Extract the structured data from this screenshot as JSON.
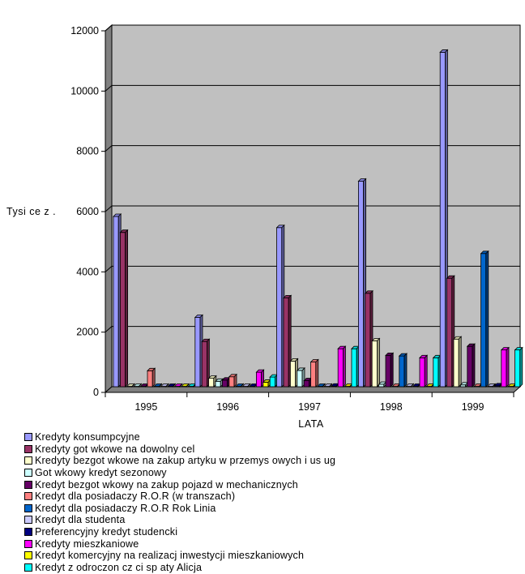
{
  "chart_data": {
    "type": "bar",
    "ylabel": "Tysi ce z .",
    "xlabel": "LATA",
    "ylim": [
      0,
      12000
    ],
    "yticks": [
      0,
      2000,
      4000,
      6000,
      8000,
      10000,
      12000
    ],
    "grid": true,
    "legend_position": "bottom",
    "categories": [
      "1995",
      "1996",
      "1997",
      "1998",
      "1999"
    ],
    "series": [
      {
        "name": "Kredyty konsumpcyjne",
        "color": "#9999ff",
        "values": [
          5650,
          2300,
          5280,
          6820,
          11100
        ]
      },
      {
        "name": "Kredyty got  wkowe na dowolny cel",
        "color": "#993366",
        "values": [
          5120,
          1500,
          2950,
          3100,
          3600
        ]
      },
      {
        "name": "Kredyty bezgot  wkowe na zakup artyku   w przemys owych i us ug",
        "color": "#ffffcc",
        "values": [
          0,
          280,
          850,
          1520,
          1580
        ]
      },
      {
        "name": "Got  wkowy kredyt sezonowy",
        "color": "#ccffff",
        "values": [
          0,
          180,
          540,
          80,
          60
        ]
      },
      {
        "name": "Kredyt bezgot  wkowy na zakup pojazd  w mechanicznych",
        "color": "#660066",
        "values": [
          0,
          220,
          200,
          1040,
          1340
        ]
      },
      {
        "name": "Kredyt dla posiadaczy R.O.R (w transzach)",
        "color": "#ff8080",
        "values": [
          530,
          330,
          820,
          0,
          0
        ]
      },
      {
        "name": "Kredyt dla posiadaczy R.O.R  Rok Linia",
        "color": "#0066cc",
        "values": [
          0,
          0,
          0,
          1020,
          4420
        ]
      },
      {
        "name": "Kredyt dla studenta",
        "color": "#ccccff",
        "values": [
          0,
          0,
          0,
          0,
          0
        ]
      },
      {
        "name": "Preferencyjny kredyt studencki",
        "color": "#000080",
        "values": [
          0,
          0,
          20,
          0,
          30
        ]
      },
      {
        "name": "Kredyty mieszkaniowe",
        "color": "#ff00ff",
        "values": [
          0,
          480,
          1260,
          960,
          1220
        ]
      },
      {
        "name": "Kredyt komercyjny na realizacj   inwestycji mieszkaniowych",
        "color": "#ffff00",
        "values": [
          0,
          150,
          0,
          0,
          0
        ]
      },
      {
        "name": "Kredyt z odroczon   cz    ci   sp aty  Alicja",
        "color": "#00ffff",
        "values": [
          0,
          320,
          1260,
          960,
          1220
        ]
      }
    ]
  },
  "colors": {
    "plot_back": "#c0c0c0",
    "plot_side": "#808080",
    "floor": "#808080"
  }
}
